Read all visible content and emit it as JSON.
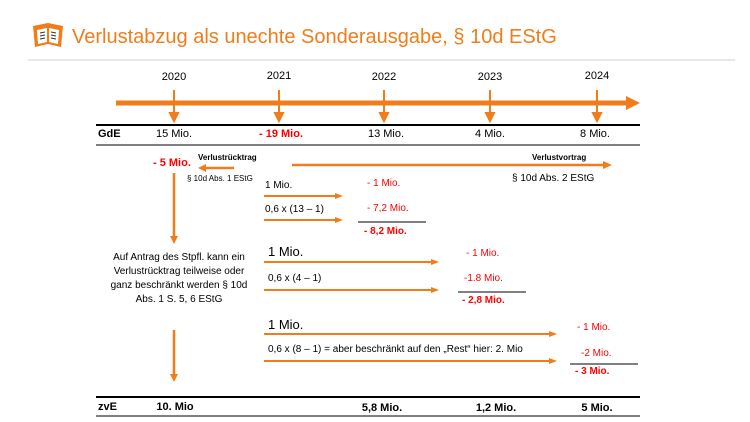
{
  "header": {
    "title": "Verlustabzug als unechte Sonderausgabe, § 10d EStG",
    "logo_icon": "book-logo-icon"
  },
  "colors": {
    "accent": "#f07d1a",
    "negative": "#ff0000",
    "rule": "#000000"
  },
  "timeline": {
    "years": [
      "2020",
      "2021",
      "2022",
      "2023",
      "2024"
    ]
  },
  "gde": {
    "label": "GdE",
    "values": [
      "15 Mio.",
      "- 19 Mio.",
      "13 Mio.",
      "4 Mio.",
      "8 Mio."
    ]
  },
  "loss": {
    "carryback_amount": "- 5 Mio.",
    "carryback_label": "Verlustrücktrag",
    "carryback_law": "§ 10d Abs. 1 EStG",
    "carryforward_label": "Verlustvortrag",
    "carryforward_law": "§ 10d Abs. 2 EStG"
  },
  "calc_2022": {
    "line1": "1 Mio.",
    "line2": "0,6 x (13 – 1)",
    "result1": "- 1 Mio.",
    "result2": "- 7,2 Mio.",
    "total": "- 8,2 Mio."
  },
  "calc_2023": {
    "line1": "1 Mio.",
    "line2": "0,6 x (4 – 1)",
    "result1": "- 1 Mio.",
    "result2": "-1.8 Mio.",
    "total": "- 2,8 Mio."
  },
  "calc_2024": {
    "line1": "1 Mio.",
    "line2": "0,6 x (8 – 1) = aber beschränkt auf den „Rest“ hier: 2. Mio",
    "result1": "- 1 Mio.",
    "result2": "-2 Mio.",
    "total": "- 3 Mio."
  },
  "note": "Auf Antrag des Stpfl. kann ein Verlustrücktrag teilweise oder ganz beschränkt werden § 10d Abs. 1 S. 5, 6 EStG",
  "zve": {
    "label": "zvE",
    "values": [
      "10. Mio",
      "",
      "5,8 Mio.",
      "1,2 Mio.",
      "5 Mio."
    ]
  }
}
